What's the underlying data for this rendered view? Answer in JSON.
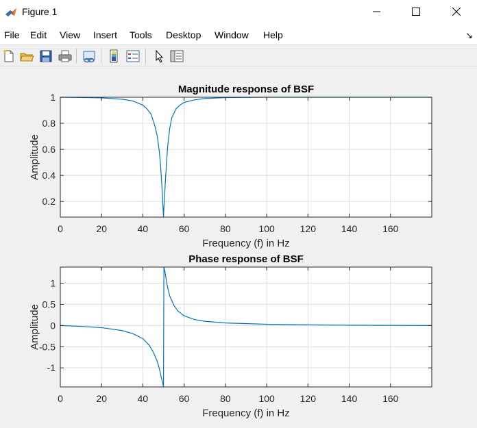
{
  "window": {
    "title": "Figure 1",
    "icon": "matlab-logo-icon",
    "controls": [
      "minimize-icon",
      "maximize-icon",
      "close-icon"
    ]
  },
  "menu": {
    "items": [
      "File",
      "Edit",
      "View",
      "Insert",
      "Tools",
      "Desktop",
      "Window",
      "Help"
    ],
    "dock_arrow": "↘"
  },
  "toolbar": {
    "buttons": [
      "new-figure-icon",
      "open-file-icon",
      "save-icon",
      "print-icon",
      "link-plot-icon",
      "colorbar-icon",
      "legend-icon",
      "edit-plot-arrow-icon",
      "property-inspector-icon"
    ]
  },
  "colors": {
    "line": "#0072BD",
    "grid": "#dcdcdc",
    "axes_bg": "#ffffff",
    "figure_bg": "#f0f0f0"
  },
  "chart_data": [
    {
      "type": "line",
      "title": "Magnitude response of BSF",
      "xlabel": "Frequency (f) in Hz",
      "ylabel": "Amplitude",
      "xlim": [
        0,
        180
      ],
      "ylim": [
        0.08,
        1.0
      ],
      "xticks": [
        0,
        20,
        40,
        60,
        80,
        100,
        120,
        140,
        160
      ],
      "yticks": [
        0.2,
        0.4,
        0.6,
        0.8,
        1
      ],
      "ytick_labels": [
        "0.2",
        "0.4",
        "0.6",
        "0.8",
        "1"
      ],
      "grid": true,
      "series": [
        {
          "x": [
            0,
            10,
            20,
            30,
            35,
            40,
            42,
            44,
            46,
            47,
            48,
            48.5,
            49,
            49.5,
            50,
            50.5,
            51,
            51.5,
            52,
            53,
            54,
            56,
            58,
            60,
            65,
            70,
            80,
            100,
            120,
            140,
            160,
            180
          ],
          "y": [
            1.0,
            0.998,
            0.995,
            0.985,
            0.972,
            0.94,
            0.91,
            0.87,
            0.77,
            0.7,
            0.58,
            0.49,
            0.38,
            0.24,
            0.08,
            0.24,
            0.38,
            0.5,
            0.62,
            0.76,
            0.84,
            0.91,
            0.94,
            0.96,
            0.98,
            0.99,
            0.997,
            1.0,
            1.0,
            1.0,
            1.0,
            1.0
          ]
        }
      ]
    },
    {
      "type": "line",
      "title": "Phase response of BSF",
      "xlabel": "Frequency (f) in Hz",
      "ylabel": "Amplitude",
      "xlim": [
        0,
        180
      ],
      "ylim": [
        -1.45,
        1.38
      ],
      "xticks": [
        0,
        20,
        40,
        60,
        80,
        100,
        120,
        140,
        160
      ],
      "yticks": [
        -1,
        -0.5,
        0,
        0.5,
        1
      ],
      "ytick_labels": [
        "-1",
        "-0.5",
        "0",
        "0.5",
        "1"
      ],
      "grid": true,
      "series": [
        {
          "x": [
            0,
            10,
            20,
            30,
            35,
            40,
            43,
            45,
            47,
            48,
            48.5,
            49,
            49.5,
            49.8,
            50,
            50.2,
            50.5,
            51,
            51.5,
            52,
            53,
            55,
            57,
            60,
            65,
            70,
            80,
            100,
            120,
            140,
            160,
            180
          ],
          "y": [
            0,
            -0.02,
            -0.05,
            -0.12,
            -0.19,
            -0.31,
            -0.46,
            -0.62,
            -0.85,
            -1.02,
            -1.13,
            -1.24,
            -1.33,
            -1.4,
            -1.45,
            1.38,
            1.32,
            1.18,
            1.03,
            0.9,
            0.7,
            0.48,
            0.34,
            0.23,
            0.14,
            0.1,
            0.06,
            0.03,
            0.015,
            0.008,
            0.004,
            0.0
          ]
        }
      ]
    }
  ]
}
